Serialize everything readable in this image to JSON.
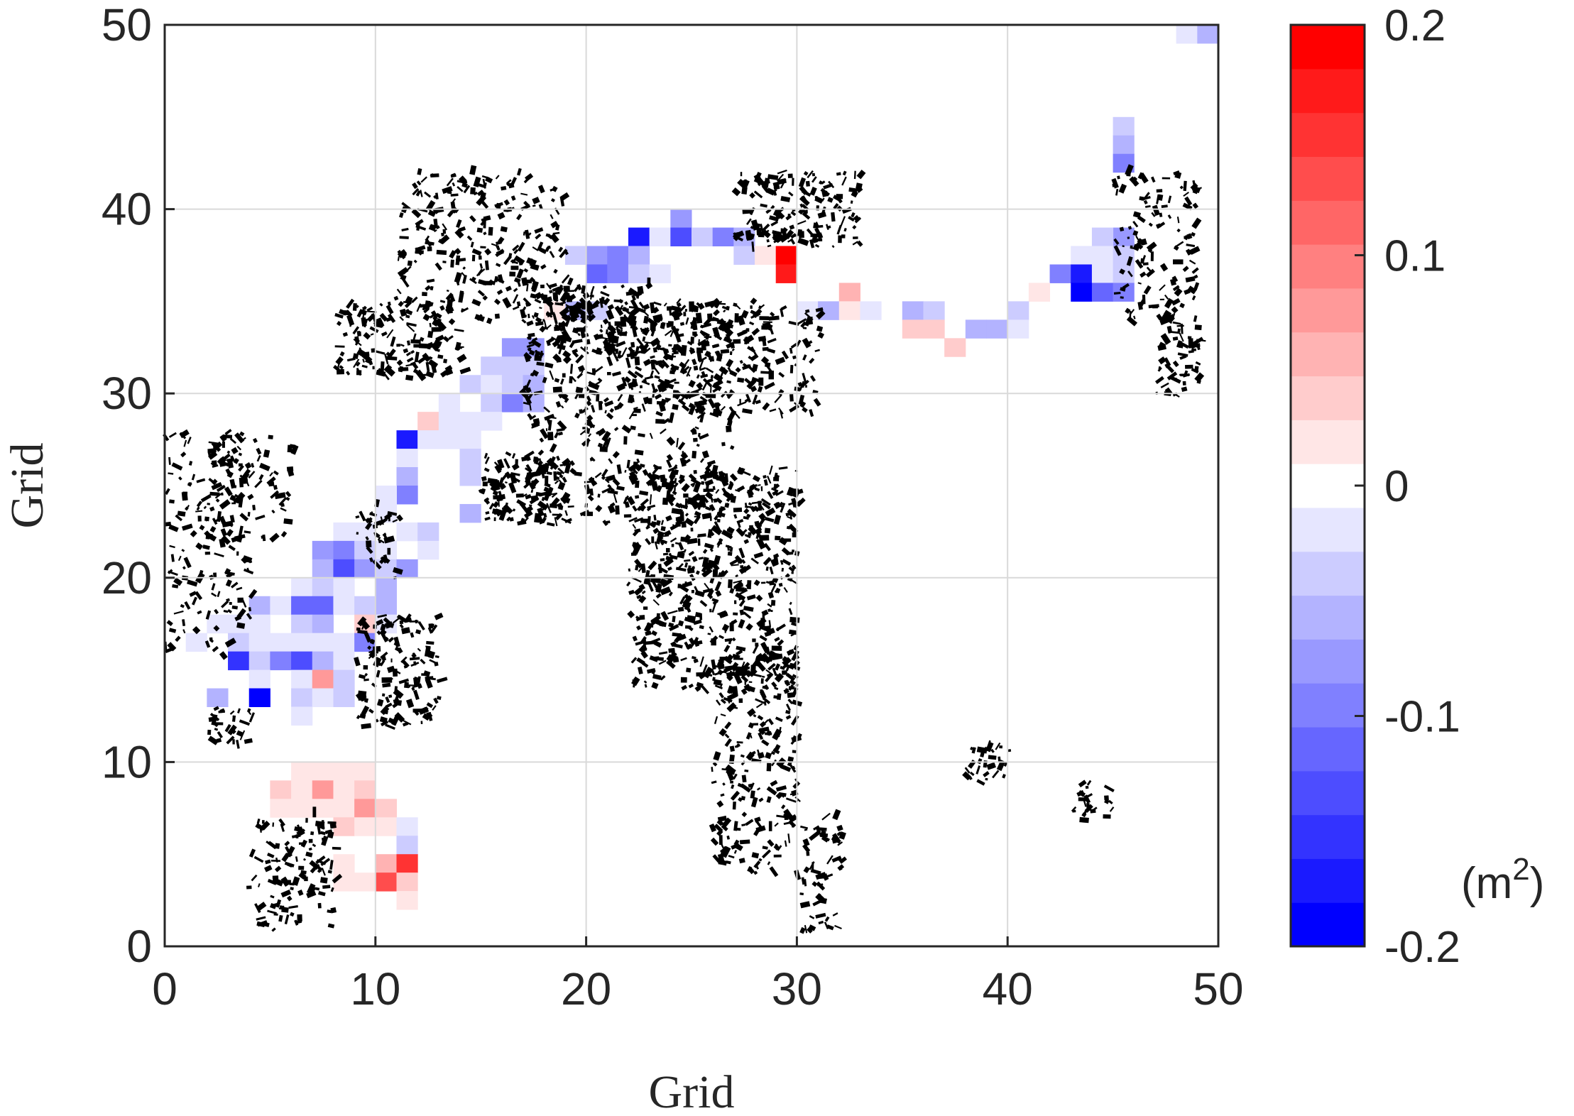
{
  "chart_data": {
    "type": "heatmap",
    "title": "",
    "xlabel": "Grid",
    "ylabel": "Grid",
    "xlim": [
      0,
      50
    ],
    "ylim": [
      0,
      50
    ],
    "xticks": [
      0,
      10,
      20,
      30,
      40,
      50
    ],
    "yticks": [
      0,
      10,
      20,
      30,
      40,
      50
    ],
    "grid": true,
    "colorbar": {
      "range": [
        -0.2,
        0.2
      ],
      "ticks": [
        0.2,
        0.1,
        0,
        -0.1,
        -0.2
      ],
      "tick_labels": [
        "0.2",
        "0.1",
        "0",
        "-0.1",
        "-0.2"
      ],
      "levels": 21,
      "unit_label": "(m",
      "unit_sup": "2",
      "unit_close": ")",
      "colormap": "blue-white-red",
      "low_color": "#0000ff",
      "mid_color": "#ffffff",
      "high_color": "#ff0000"
    },
    "background_overlay": "building-footprints",
    "cells": [
      [
        48,
        49,
        -0.02
      ],
      [
        49,
        49,
        -0.06
      ],
      [
        45,
        44,
        -0.04
      ],
      [
        45,
        43,
        -0.06
      ],
      [
        45,
        42,
        -0.1
      ],
      [
        24,
        39,
        -0.08
      ],
      [
        22,
        38,
        -0.18
      ],
      [
        23,
        38,
        -0.02
      ],
      [
        24,
        38,
        -0.14
      ],
      [
        25,
        38,
        -0.04
      ],
      [
        26,
        38,
        -0.1
      ],
      [
        27,
        38,
        -0.06
      ],
      [
        45,
        38,
        -0.08
      ],
      [
        44,
        38,
        -0.04
      ],
      [
        19,
        37,
        -0.04
      ],
      [
        20,
        37,
        -0.08
      ],
      [
        21,
        37,
        -0.1
      ],
      [
        22,
        37,
        -0.06
      ],
      [
        27,
        37,
        -0.04
      ],
      [
        28,
        37,
        0.02
      ],
      [
        29,
        37,
        0.2
      ],
      [
        43,
        37,
        -0.02
      ],
      [
        44,
        37,
        -0.02
      ],
      [
        45,
        37,
        -0.04
      ],
      [
        20,
        36,
        -0.12
      ],
      [
        21,
        36,
        -0.1
      ],
      [
        22,
        36,
        -0.04
      ],
      [
        23,
        36,
        -0.02
      ],
      [
        29,
        36,
        0.18
      ],
      [
        42,
        36,
        -0.1
      ],
      [
        43,
        36,
        -0.18
      ],
      [
        44,
        36,
        -0.02
      ],
      [
        45,
        36,
        -0.04
      ],
      [
        32,
        35,
        0.06
      ],
      [
        41,
        35,
        0.02
      ],
      [
        43,
        35,
        -0.2
      ],
      [
        44,
        35,
        -0.12
      ],
      [
        45,
        35,
        -0.1
      ],
      [
        18,
        34,
        0.02
      ],
      [
        19,
        34,
        -0.06
      ],
      [
        20,
        34,
        -0.04
      ],
      [
        30,
        34,
        -0.02
      ],
      [
        31,
        34,
        -0.06
      ],
      [
        32,
        34,
        0.02
      ],
      [
        33,
        34,
        -0.02
      ],
      [
        35,
        34,
        -0.06
      ],
      [
        36,
        34,
        -0.04
      ],
      [
        40,
        34,
        -0.04
      ],
      [
        35,
        33,
        0.04
      ],
      [
        36,
        33,
        0.04
      ],
      [
        38,
        33,
        -0.06
      ],
      [
        39,
        33,
        -0.06
      ],
      [
        40,
        33,
        -0.02
      ],
      [
        16,
        32,
        -0.08
      ],
      [
        17,
        32,
        -0.08
      ],
      [
        37,
        32,
        0.04
      ],
      [
        15,
        31,
        -0.04
      ],
      [
        16,
        31,
        -0.04
      ],
      [
        17,
        31,
        -0.04
      ],
      [
        14,
        30,
        -0.04
      ],
      [
        15,
        30,
        -0.02
      ],
      [
        16,
        30,
        -0.04
      ],
      [
        17,
        30,
        -0.06
      ],
      [
        13,
        29,
        -0.02
      ],
      [
        15,
        29,
        -0.04
      ],
      [
        16,
        29,
        -0.1
      ],
      [
        17,
        29,
        -0.06
      ],
      [
        12,
        28,
        0.04
      ],
      [
        13,
        28,
        -0.02
      ],
      [
        14,
        28,
        -0.02
      ],
      [
        15,
        28,
        -0.02
      ],
      [
        11,
        27,
        -0.18
      ],
      [
        12,
        27,
        -0.02
      ],
      [
        13,
        27,
        -0.02
      ],
      [
        14,
        27,
        -0.02
      ],
      [
        11,
        26,
        -0.02
      ],
      [
        14,
        26,
        -0.04
      ],
      [
        11,
        25,
        -0.06
      ],
      [
        14,
        25,
        -0.04
      ],
      [
        11,
        24,
        -0.1
      ],
      [
        10,
        24,
        -0.02
      ],
      [
        14,
        23,
        -0.06
      ],
      [
        10,
        23,
        -0.02
      ],
      [
        8,
        22,
        -0.02
      ],
      [
        9,
        22,
        -0.02
      ],
      [
        11,
        22,
        -0.02
      ],
      [
        12,
        22,
        -0.04
      ],
      [
        7,
        21,
        -0.08
      ],
      [
        8,
        21,
        -0.1
      ],
      [
        9,
        21,
        -0.04
      ],
      [
        10,
        21,
        -0.02
      ],
      [
        12,
        21,
        -0.02
      ],
      [
        7,
        20,
        -0.06
      ],
      [
        8,
        20,
        -0.14
      ],
      [
        9,
        20,
        -0.08
      ],
      [
        10,
        20,
        -0.04
      ],
      [
        11,
        20,
        -0.08
      ],
      [
        6,
        19,
        -0.02
      ],
      [
        7,
        19,
        -0.04
      ],
      [
        8,
        19,
        -0.02
      ],
      [
        10,
        19,
        -0.06
      ],
      [
        4,
        18,
        -0.06
      ],
      [
        5,
        18,
        -0.02
      ],
      [
        6,
        18,
        -0.12
      ],
      [
        7,
        18,
        -0.12
      ],
      [
        8,
        18,
        -0.02
      ],
      [
        9,
        18,
        -0.04
      ],
      [
        10,
        18,
        -0.06
      ],
      [
        2,
        17,
        -0.02
      ],
      [
        3,
        17,
        -0.02
      ],
      [
        4,
        17,
        -0.02
      ],
      [
        6,
        17,
        -0.04
      ],
      [
        7,
        17,
        -0.06
      ],
      [
        9,
        17,
        0.04
      ],
      [
        10,
        17,
        -0.02
      ],
      [
        1,
        16,
        -0.02
      ],
      [
        3,
        16,
        -0.04
      ],
      [
        4,
        16,
        -0.02
      ],
      [
        5,
        16,
        -0.02
      ],
      [
        6,
        16,
        -0.02
      ],
      [
        7,
        16,
        -0.02
      ],
      [
        8,
        16,
        -0.02
      ],
      [
        9,
        16,
        -0.1
      ],
      [
        3,
        15,
        -0.16
      ],
      [
        4,
        15,
        -0.04
      ],
      [
        5,
        15,
        -0.1
      ],
      [
        6,
        15,
        -0.14
      ],
      [
        7,
        15,
        -0.06
      ],
      [
        8,
        15,
        -0.02
      ],
      [
        4,
        14,
        -0.02
      ],
      [
        6,
        14,
        -0.02
      ],
      [
        7,
        14,
        0.08
      ],
      [
        8,
        14,
        -0.04
      ],
      [
        2,
        13,
        -0.06
      ],
      [
        4,
        13,
        -0.2
      ],
      [
        6,
        13,
        -0.04
      ],
      [
        7,
        13,
        -0.02
      ],
      [
        8,
        13,
        -0.04
      ],
      [
        6,
        12,
        -0.02
      ],
      [
        6,
        9,
        0.02
      ],
      [
        7,
        9,
        0.02
      ],
      [
        8,
        9,
        0.02
      ],
      [
        9,
        9,
        0.02
      ],
      [
        5,
        8,
        0.04
      ],
      [
        6,
        8,
        0.02
      ],
      [
        7,
        8,
        0.08
      ],
      [
        8,
        8,
        0.02
      ],
      [
        9,
        8,
        0.04
      ],
      [
        5,
        7,
        0.02
      ],
      [
        6,
        7,
        0.02
      ],
      [
        7,
        7,
        0.02
      ],
      [
        8,
        7,
        0.02
      ],
      [
        9,
        7,
        0.08
      ],
      [
        10,
        7,
        0.04
      ],
      [
        8,
        6,
        0.04
      ],
      [
        9,
        6,
        0.02
      ],
      [
        10,
        6,
        0.02
      ],
      [
        11,
        6,
        -0.02
      ],
      [
        11,
        5,
        -0.04
      ],
      [
        8,
        4,
        0.02
      ],
      [
        10,
        4,
        0.06
      ],
      [
        11,
        4,
        0.16
      ],
      [
        8,
        3,
        0.02
      ],
      [
        9,
        3,
        0.02
      ],
      [
        10,
        3,
        0.14
      ],
      [
        11,
        3,
        0.04
      ],
      [
        11,
        2,
        0.02
      ]
    ]
  }
}
